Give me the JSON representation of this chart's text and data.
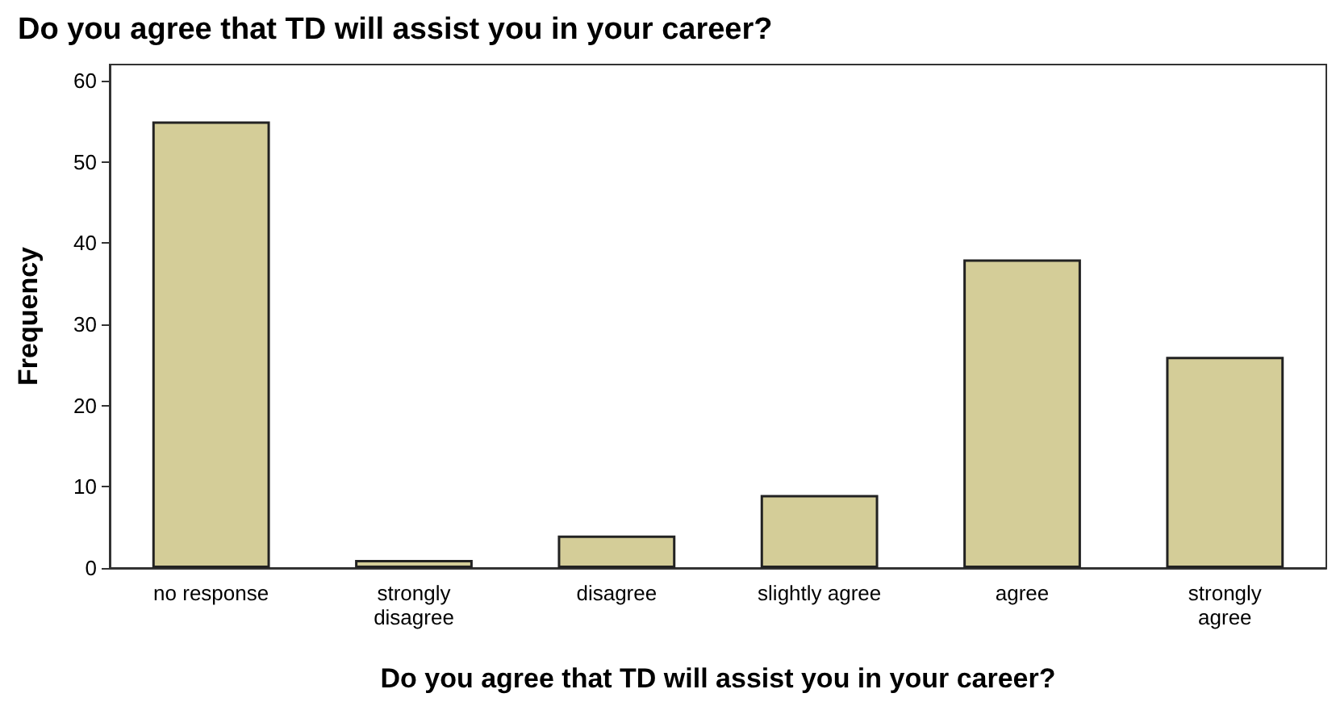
{
  "chart_data": {
    "type": "bar",
    "title": "Do you agree that TD will assist you in your career?",
    "xlabel": "Do you agree that TD will assist you in your career?",
    "ylabel": "Frequency",
    "categories": [
      "no response",
      "strongly\ndisagree",
      "disagree",
      "slightly agree",
      "agree",
      "strongly\nagree"
    ],
    "values": [
      55,
      1,
      4,
      9,
      38,
      26
    ],
    "color": "#d4cd98",
    "ylim": [
      0,
      62
    ],
    "yticks": [
      0,
      10,
      20,
      30,
      40,
      50,
      60
    ],
    "grid": false
  }
}
